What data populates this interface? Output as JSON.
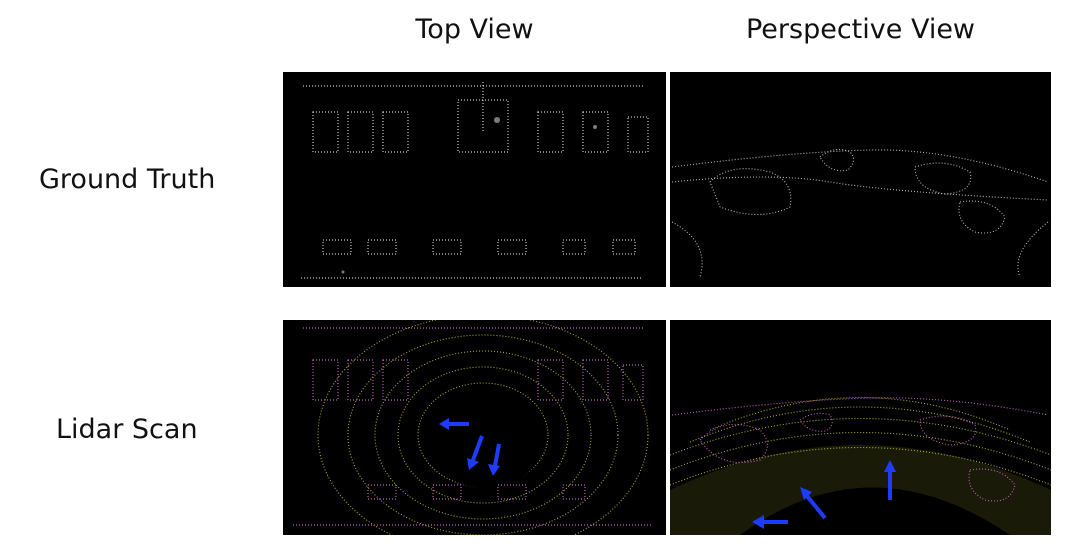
{
  "headers": {
    "top_view": "Top View",
    "perspective_view": "Perspective View"
  },
  "rows": {
    "ground_truth": "Ground Truth",
    "lidar_scan": "Lidar Scan"
  },
  "colors": {
    "background": "#000000",
    "ground_truth_points": "#e6e6e6",
    "object_points": "#d46ad4",
    "ground_points": "#c8c830",
    "arrows": "#1e3cff"
  }
}
